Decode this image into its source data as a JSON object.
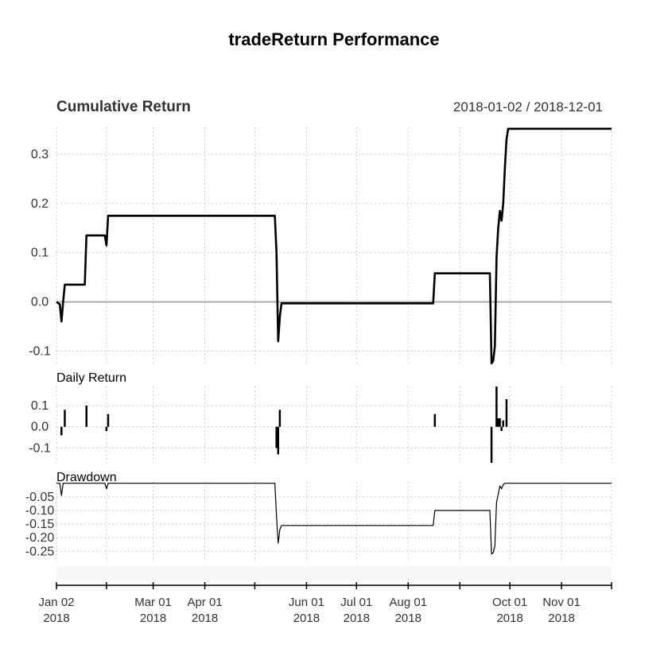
{
  "chart_data": {
    "type": "line",
    "title": "tradeReturn Performance",
    "date_range": "2018-01-02 / 2018-12-01",
    "x_range": [
      "2018-01-02",
      "2018-12-01"
    ],
    "x_ticks": [
      {
        "date": "2018-01-02",
        "label1": "Jan 02",
        "label2": "2018"
      },
      {
        "date": "2018-02-01",
        "label1": "",
        "label2": ""
      },
      {
        "date": "2018-03-01",
        "label1": "Mar 01",
        "label2": "2018"
      },
      {
        "date": "2018-04-01",
        "label1": "Apr 01",
        "label2": "2018"
      },
      {
        "date": "2018-05-01",
        "label1": "",
        "label2": ""
      },
      {
        "date": "2018-06-01",
        "label1": "Jun 01",
        "label2": "2018"
      },
      {
        "date": "2018-07-01",
        "label1": "Jul 01",
        "label2": "2018"
      },
      {
        "date": "2018-08-01",
        "label1": "Aug 01",
        "label2": "2018"
      },
      {
        "date": "2018-09-01",
        "label1": "",
        "label2": ""
      },
      {
        "date": "2018-10-01",
        "label1": "Oct 01",
        "label2": "2018"
      },
      {
        "date": "2018-11-01",
        "label1": "Nov 01",
        "label2": "2018"
      },
      {
        "date": "2018-12-01",
        "label1": "",
        "label2": ""
      }
    ],
    "grid": true,
    "panels": [
      {
        "title": "Cumulative Return",
        "ylim": [
          -0.13,
          0.355
        ],
        "yticks": [
          -0.1,
          0.0,
          0.1,
          0.2,
          0.3
        ],
        "ytick_labels": [
          "-0.1",
          "0.0",
          "0.1",
          "0.2",
          "0.3"
        ],
        "zero_line": true,
        "series": [
          {
            "style": "line",
            "points": [
              [
                "2018-01-02",
                0.0
              ],
              [
                "2018-01-04",
                -0.005
              ],
              [
                "2018-01-05",
                -0.04
              ],
              [
                "2018-01-06",
                0.0
              ],
              [
                "2018-01-07",
                0.035
              ],
              [
                "2018-01-19",
                0.035
              ],
              [
                "2018-01-20",
                0.135
              ],
              [
                "2018-01-31",
                0.135
              ],
              [
                "2018-02-01",
                0.115
              ],
              [
                "2018-02-02",
                0.175
              ],
              [
                "2018-05-13",
                0.175
              ],
              [
                "2018-05-14",
                0.1
              ],
              [
                "2018-05-15",
                -0.08
              ],
              [
                "2018-05-16",
                -0.03
              ],
              [
                "2018-05-17",
                -0.003
              ],
              [
                "2018-08-16",
                -0.003
              ],
              [
                "2018-08-17",
                0.058
              ],
              [
                "2018-09-19",
                0.058
              ],
              [
                "2018-09-20",
                -0.125
              ],
              [
                "2018-09-21",
                -0.12
              ],
              [
                "2018-09-22",
                -0.09
              ],
              [
                "2018-09-23",
                0.09
              ],
              [
                "2018-09-24",
                0.15
              ],
              [
                "2018-09-25",
                0.185
              ],
              [
                "2018-09-26",
                0.165
              ],
              [
                "2018-09-27",
                0.2
              ],
              [
                "2018-09-28",
                0.27
              ],
              [
                "2018-09-29",
                0.33
              ],
              [
                "2018-09-30",
                0.352
              ],
              [
                "2018-12-01",
                0.352
              ]
            ]
          }
        ]
      },
      {
        "title": "Daily Return",
        "ylim": [
          -0.17,
          0.19
        ],
        "yticks": [
          -0.1,
          0.0,
          0.1
        ],
        "ytick_labels": [
          "-0.1",
          "0.0",
          "0.1"
        ],
        "zero_line": false,
        "series": [
          {
            "style": "bars",
            "points": [
              [
                "2018-01-05",
                -0.04
              ],
              [
                "2018-01-07",
                0.08
              ],
              [
                "2018-01-20",
                0.1
              ],
              [
                "2018-02-01",
                -0.02
              ],
              [
                "2018-02-02",
                0.06
              ],
              [
                "2018-05-14",
                -0.1
              ],
              [
                "2018-05-15",
                -0.13
              ],
              [
                "2018-05-16",
                0.08
              ],
              [
                "2018-08-17",
                0.06
              ],
              [
                "2018-09-20",
                -0.17
              ],
              [
                "2018-09-23",
                0.19
              ],
              [
                "2018-09-24",
                0.04
              ],
              [
                "2018-09-25",
                0.04
              ],
              [
                "2018-09-26",
                -0.02
              ],
              [
                "2018-09-27",
                0.03
              ],
              [
                "2018-09-29",
                0.13
              ]
            ]
          }
        ]
      },
      {
        "title": "Drawdown",
        "ylim": [
          -0.29,
          0.005
        ],
        "yticks": [
          -0.25,
          -0.2,
          -0.15,
          -0.1,
          -0.05
        ],
        "ytick_labels": [
          "-0.25",
          "-0.20",
          "-0.15",
          "-0.10",
          "-0.05"
        ],
        "zero_line": false,
        "series": [
          {
            "style": "thin-line",
            "points": [
              [
                "2018-01-02",
                0.0
              ],
              [
                "2018-01-04",
                0.0
              ],
              [
                "2018-01-05",
                -0.045
              ],
              [
                "2018-01-06",
                0.0
              ],
              [
                "2018-01-31",
                0.0
              ],
              [
                "2018-02-01",
                -0.02
              ],
              [
                "2018-02-02",
                0.0
              ],
              [
                "2018-05-13",
                0.0
              ],
              [
                "2018-05-14",
                -0.12
              ],
              [
                "2018-05-15",
                -0.22
              ],
              [
                "2018-05-16",
                -0.17
              ],
              [
                "2018-05-17",
                -0.155
              ],
              [
                "2018-08-16",
                -0.155
              ],
              [
                "2018-08-17",
                -0.1
              ],
              [
                "2018-09-19",
                -0.1
              ],
              [
                "2018-09-20",
                -0.26
              ],
              [
                "2018-09-21",
                -0.255
              ],
              [
                "2018-09-22",
                -0.23
              ],
              [
                "2018-09-23",
                -0.07
              ],
              [
                "2018-09-24",
                -0.04
              ],
              [
                "2018-09-25",
                -0.01
              ],
              [
                "2018-09-26",
                -0.02
              ],
              [
                "2018-09-27",
                -0.005
              ],
              [
                "2018-09-28",
                0.0
              ],
              [
                "2018-12-01",
                0.0
              ]
            ]
          }
        ]
      }
    ]
  }
}
